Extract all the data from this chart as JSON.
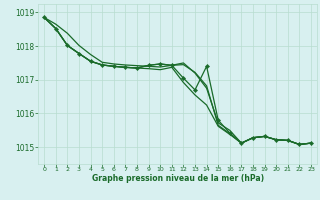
{
  "background_color": "#d8f0f0",
  "grid_color": "#b8ddd0",
  "line_color": "#1a6b2a",
  "text_color": "#1a6b2a",
  "xlabel": "Graphe pression niveau de la mer (hPa)",
  "xlim": [
    -0.5,
    23.5
  ],
  "ylim": [
    1014.5,
    1019.25
  ],
  "yticks": [
    1015,
    1016,
    1017,
    1018,
    1019
  ],
  "xticks": [
    0,
    1,
    2,
    3,
    4,
    5,
    6,
    7,
    8,
    9,
    10,
    11,
    12,
    13,
    14,
    15,
    16,
    17,
    18,
    19,
    20,
    21,
    22,
    23
  ],
  "line1": [
    1018.85,
    1018.65,
    1018.38,
    1018.02,
    1017.75,
    1017.52,
    1017.47,
    1017.44,
    1017.42,
    1017.4,
    1017.38,
    1017.43,
    1017.5,
    1017.2,
    1016.75,
    1015.72,
    1015.5,
    1015.12,
    1015.28,
    1015.32,
    1015.22,
    1015.2,
    1015.08,
    1015.12
  ],
  "line2": [
    1018.85,
    1018.52,
    1018.02,
    1017.78,
    1017.55,
    1017.44,
    1017.4,
    1017.37,
    1017.35,
    1017.33,
    1017.3,
    1017.37,
    1016.92,
    1016.55,
    1016.25,
    1015.62,
    1015.38,
    1015.12,
    1015.28,
    1015.32,
    1015.22,
    1015.2,
    1015.08,
    1015.12
  ],
  "line3": [
    1018.85,
    1018.52,
    1018.02,
    1017.78,
    1017.55,
    1017.44,
    1017.4,
    1017.37,
    1017.35,
    1017.43,
    1017.47,
    1017.43,
    1017.45,
    1017.22,
    1016.82,
    1015.65,
    1015.4,
    1015.12,
    1015.28,
    1015.32,
    1015.22,
    1015.2,
    1015.08,
    1015.12
  ],
  "line_marked": [
    1018.85,
    1018.52,
    1018.02,
    1017.78,
    1017.55,
    1017.44,
    1017.4,
    1017.37,
    1017.35,
    1017.43,
    1017.47,
    1017.43,
    1017.05,
    1016.7,
    1017.4,
    1015.8,
    1015.42,
    1015.12,
    1015.28,
    1015.32,
    1015.22,
    1015.2,
    1015.08,
    1015.12
  ]
}
